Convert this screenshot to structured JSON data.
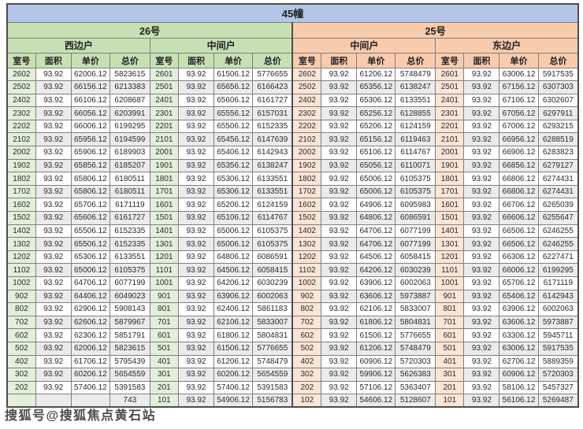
{
  "title": "45幢",
  "columns": [
    "室号",
    "面积",
    "单价",
    "总价"
  ],
  "watermark": "搜狐号@搜狐焦点黄石站",
  "colors": {
    "title_bg": "#b4c6e7",
    "building26_bg": "#c6e0b4",
    "building25_bg": "#f8cbad",
    "room26_bg": "#e2efda",
    "room25_bg": "#fce4d6",
    "alt_row_bg": "#ebebeb",
    "border": "#7f7f7f"
  },
  "buildings": [
    {
      "name": "26号",
      "units": [
        {
          "name": "西边户",
          "rows": [
            [
              "2602",
              "93.92",
              "62006.12",
              "5823615"
            ],
            [
              "2502",
              "93.92",
              "66156.12",
              "6213383"
            ],
            [
              "2402",
              "93.92",
              "66106.12",
              "6208687"
            ],
            [
              "2302",
              "93.92",
              "66056.12",
              "6203991"
            ],
            [
              "2202",
              "93.92",
              "66006.12",
              "6199295"
            ],
            [
              "2102",
              "93.92",
              "65956.12",
              "6194599"
            ],
            [
              "2002",
              "93.92",
              "65906.12",
              "6189903"
            ],
            [
              "1902",
              "93.92",
              "65856.12",
              "6185207"
            ],
            [
              "1802",
              "93.92",
              "65806.12",
              "6180511"
            ],
            [
              "1702",
              "93.92",
              "65806.12",
              "6180511"
            ],
            [
              "1602",
              "93.92",
              "65706.12",
              "6171119"
            ],
            [
              "1502",
              "93.92",
              "65606.12",
              "6161727"
            ],
            [
              "1402",
              "93.92",
              "65506.12",
              "6152335"
            ],
            [
              "1302",
              "93.92",
              "65506.12",
              "6152335"
            ],
            [
              "1202",
              "93.92",
              "65306.12",
              "6133551"
            ],
            [
              "1102",
              "93.92",
              "65006.12",
              "6105375"
            ],
            [
              "1002",
              "93.92",
              "64706.12",
              "6077199"
            ],
            [
              "902",
              "93.92",
              "64406.12",
              "6049023"
            ],
            [
              "802",
              "93.92",
              "62906.12",
              "5908143"
            ],
            [
              "702",
              "93.92",
              "62606.12",
              "5879967"
            ],
            [
              "602",
              "93.92",
              "62306.12",
              "5851791"
            ],
            [
              "502",
              "93.92",
              "62006.12",
              "5823615"
            ],
            [
              "402",
              "93.92",
              "61706.12",
              "5795439"
            ],
            [
              "302",
              "93.92",
              "60206.12",
              "5654559"
            ],
            [
              "202",
              "93.92",
              "57406.12",
              "5391583"
            ],
            [
              "",
              "",
              "",
              "743"
            ]
          ]
        },
        {
          "name": "中间户",
          "rows": [
            [
              "2601",
              "93.92",
              "61506.12",
              "5776655"
            ],
            [
              "2501",
              "93.92",
              "65656.12",
              "6166423"
            ],
            [
              "2401",
              "93.92",
              "65606.12",
              "6161727"
            ],
            [
              "2301",
              "93.92",
              "65556.12",
              "6157031"
            ],
            [
              "2201",
              "93.92",
              "65506.12",
              "6152335"
            ],
            [
              "2101",
              "93.92",
              "65456.12",
              "6147639"
            ],
            [
              "2001",
              "93.92",
              "65406.12",
              "6142943"
            ],
            [
              "1901",
              "93.92",
              "65356.12",
              "6138247"
            ],
            [
              "1801",
              "93.92",
              "65306.12",
              "6133551"
            ],
            [
              "1701",
              "93.92",
              "65306.12",
              "6133551"
            ],
            [
              "1601",
              "93.92",
              "65206.12",
              "6124159"
            ],
            [
              "1501",
              "93.92",
              "65106.12",
              "6114767"
            ],
            [
              "1401",
              "93.92",
              "65006.12",
              "6105375"
            ],
            [
              "1301",
              "93.92",
              "65006.12",
              "6105375"
            ],
            [
              "1201",
              "93.92",
              "64806.12",
              "6086591"
            ],
            [
              "1101",
              "93.92",
              "64506.12",
              "6058415"
            ],
            [
              "1001",
              "93.92",
              "64206.12",
              "6030239"
            ],
            [
              "901",
              "93.92",
              "63906.12",
              "6002063"
            ],
            [
              "801",
              "93.92",
              "62406.12",
              "5861183"
            ],
            [
              "701",
              "93.92",
              "62106.12",
              "5833007"
            ],
            [
              "601",
              "93.92",
              "61806.12",
              "5804831"
            ],
            [
              "501",
              "93.92",
              "61506.12",
              "5776655"
            ],
            [
              "401",
              "93.92",
              "61206.12",
              "5748479"
            ],
            [
              "301",
              "93.92",
              "60206.12",
              "5654559"
            ],
            [
              "201",
              "93.92",
              "57406.12",
              "5391583"
            ],
            [
              "101",
              "93.92",
              "54906.12",
              "5156783"
            ]
          ]
        }
      ]
    },
    {
      "name": "25号",
      "units": [
        {
          "name": "中间户",
          "rows": [
            [
              "2602",
              "93.92",
              "61206.12",
              "5748479"
            ],
            [
              "2502",
              "93.92",
              "65356.12",
              "6138247"
            ],
            [
              "2402",
              "93.92",
              "65306.12",
              "6133551"
            ],
            [
              "2302",
              "93.92",
              "65256.12",
              "6128855"
            ],
            [
              "2202",
              "93.92",
              "65206.12",
              "6124159"
            ],
            [
              "2102",
              "93.92",
              "65156.12",
              "6119463"
            ],
            [
              "2002",
              "93.92",
              "65106.12",
              "6114767"
            ],
            [
              "1902",
              "93.92",
              "65056.12",
              "6110071"
            ],
            [
              "1802",
              "93.92",
              "65006.12",
              "6105375"
            ],
            [
              "1702",
              "93.92",
              "65006.12",
              "6105375"
            ],
            [
              "1602",
              "93.92",
              "64906.12",
              "6095983"
            ],
            [
              "1502",
              "93.92",
              "64806.12",
              "6086591"
            ],
            [
              "1402",
              "93.92",
              "64706.12",
              "6077199"
            ],
            [
              "1302",
              "93.92",
              "64706.12",
              "6077199"
            ],
            [
              "1202",
              "93.92",
              "64506.12",
              "6058415"
            ],
            [
              "1102",
              "93.92",
              "64206.12",
              "6030239"
            ],
            [
              "1002",
              "93.92",
              "63906.12",
              "6002063"
            ],
            [
              "902",
              "93.92",
              "63606.12",
              "5973887"
            ],
            [
              "802",
              "93.92",
              "62106.12",
              "5833007"
            ],
            [
              "702",
              "93.92",
              "61806.12",
              "5804831"
            ],
            [
              "602",
              "93.92",
              "61506.12",
              "5776655"
            ],
            [
              "502",
              "93.92",
              "61206.12",
              "5748479"
            ],
            [
              "402",
              "93.92",
              "60906.12",
              "5720303"
            ],
            [
              "302",
              "93.92",
              "59906.12",
              "5626383"
            ],
            [
              "202",
              "93.92",
              "57106.12",
              "5363407"
            ],
            [
              "102",
              "93.92",
              "54606.12",
              "5128607"
            ]
          ]
        },
        {
          "name": "东边户",
          "rows": [
            [
              "2601",
              "93.92",
              "63006.12",
              "5917535"
            ],
            [
              "2501",
              "93.92",
              "67156.12",
              "6307303"
            ],
            [
              "2401",
              "93.92",
              "67106.12",
              "6302607"
            ],
            [
              "2301",
              "93.92",
              "67056.12",
              "6297911"
            ],
            [
              "2201",
              "93.92",
              "67006.12",
              "6293215"
            ],
            [
              "2101",
              "93.92",
              "66956.12",
              "6288519"
            ],
            [
              "2001",
              "93.92",
              "66906.12",
              "6283823"
            ],
            [
              "1901",
              "93.92",
              "66856.12",
              "6279127"
            ],
            [
              "1801",
              "93.92",
              "66806.12",
              "6274431"
            ],
            [
              "1701",
              "93.92",
              "66806.12",
              "6274431"
            ],
            [
              "1601",
              "93.92",
              "66706.12",
              "6265039"
            ],
            [
              "1501",
              "93.92",
              "66606.12",
              "6255647"
            ],
            [
              "1401",
              "93.92",
              "66506.12",
              "6246255"
            ],
            [
              "1301",
              "93.92",
              "66506.12",
              "6246255"
            ],
            [
              "1201",
              "93.92",
              "66306.12",
              "6227471"
            ],
            [
              "1101",
              "93.92",
              "66006.12",
              "6199295"
            ],
            [
              "1001",
              "93.92",
              "65706.12",
              "6171119"
            ],
            [
              "901",
              "93.92",
              "65406.12",
              "6142943"
            ],
            [
              "801",
              "93.92",
              "63906.12",
              "6002063"
            ],
            [
              "701",
              "93.92",
              "63606.12",
              "5973887"
            ],
            [
              "601",
              "93.92",
              "63306.12",
              "5945711"
            ],
            [
              "501",
              "93.92",
              "63006.12",
              "5917535"
            ],
            [
              "401",
              "93.92",
              "62706.12",
              "5889359"
            ],
            [
              "301",
              "93.92",
              "60906.12",
              "5720303"
            ],
            [
              "201",
              "93.92",
              "58106.12",
              "5457327"
            ],
            [
              "101",
              "93.92",
              "56106.12",
              "5269487"
            ]
          ]
        }
      ]
    }
  ]
}
